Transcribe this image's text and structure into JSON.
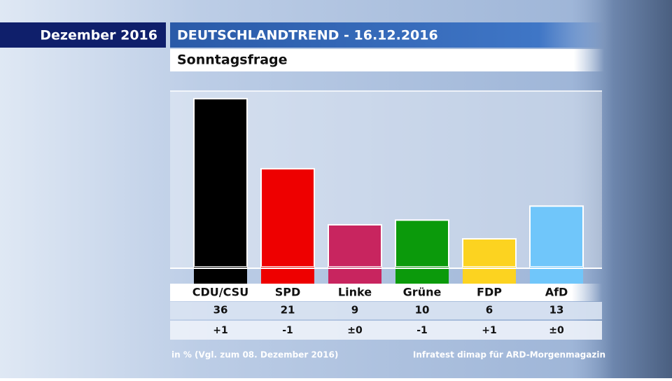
{
  "chart_data": {
    "type": "bar",
    "header_label": "Dezember 2016",
    "title": "DEUTSCHLANDTREND - 16.12.2016",
    "subtitle": "Sonntagsfrage",
    "categories": [
      "CDU/CSU",
      "SPD",
      "Linke",
      "Grüne",
      "FDP",
      "AfD"
    ],
    "values": [
      36,
      21,
      9,
      10,
      6,
      13
    ],
    "colors": [
      "#000000",
      "#ee0000",
      "#c8255f",
      "#0b9a0b",
      "#fcd320",
      "#70c6fa"
    ],
    "change_labels": [
      "+1",
      "-1",
      "±0",
      "-1",
      "+1",
      "±0"
    ],
    "footnote_left": "in % (Vgl. zum 08. Dezember 2016)",
    "footnote_right": "Infratest dimap für ARD-Morgenmagazin"
  }
}
